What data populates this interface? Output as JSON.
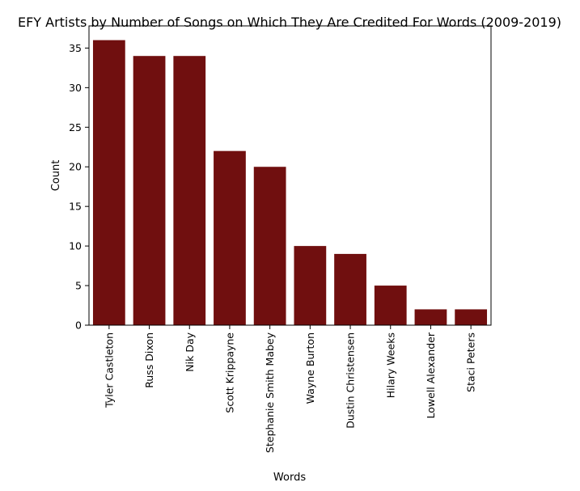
{
  "chart_data": {
    "type": "bar",
    "title": "EFY Artists by Number of Songs on Which They Are Credited For Words (2009-2019)",
    "xlabel": "Words",
    "ylabel": "Count",
    "categories": [
      "Tyler Castleton",
      "Russ Dixon",
      "Nik Day",
      "Scott Krippayne",
      "Stephanie Smith Mabey",
      "Wayne Burton",
      "Dustin Christensen",
      "Hilary Weeks",
      "Lowell Alexander",
      "Staci Peters"
    ],
    "values": [
      36,
      34,
      34,
      22,
      20,
      10,
      9,
      5,
      2,
      2
    ],
    "ylim": [
      0,
      37.8
    ],
    "yticks": [
      0,
      5,
      10,
      15,
      20,
      25,
      30,
      35
    ],
    "bar_color": "#700f0f",
    "grid": false,
    "legend": "none"
  }
}
